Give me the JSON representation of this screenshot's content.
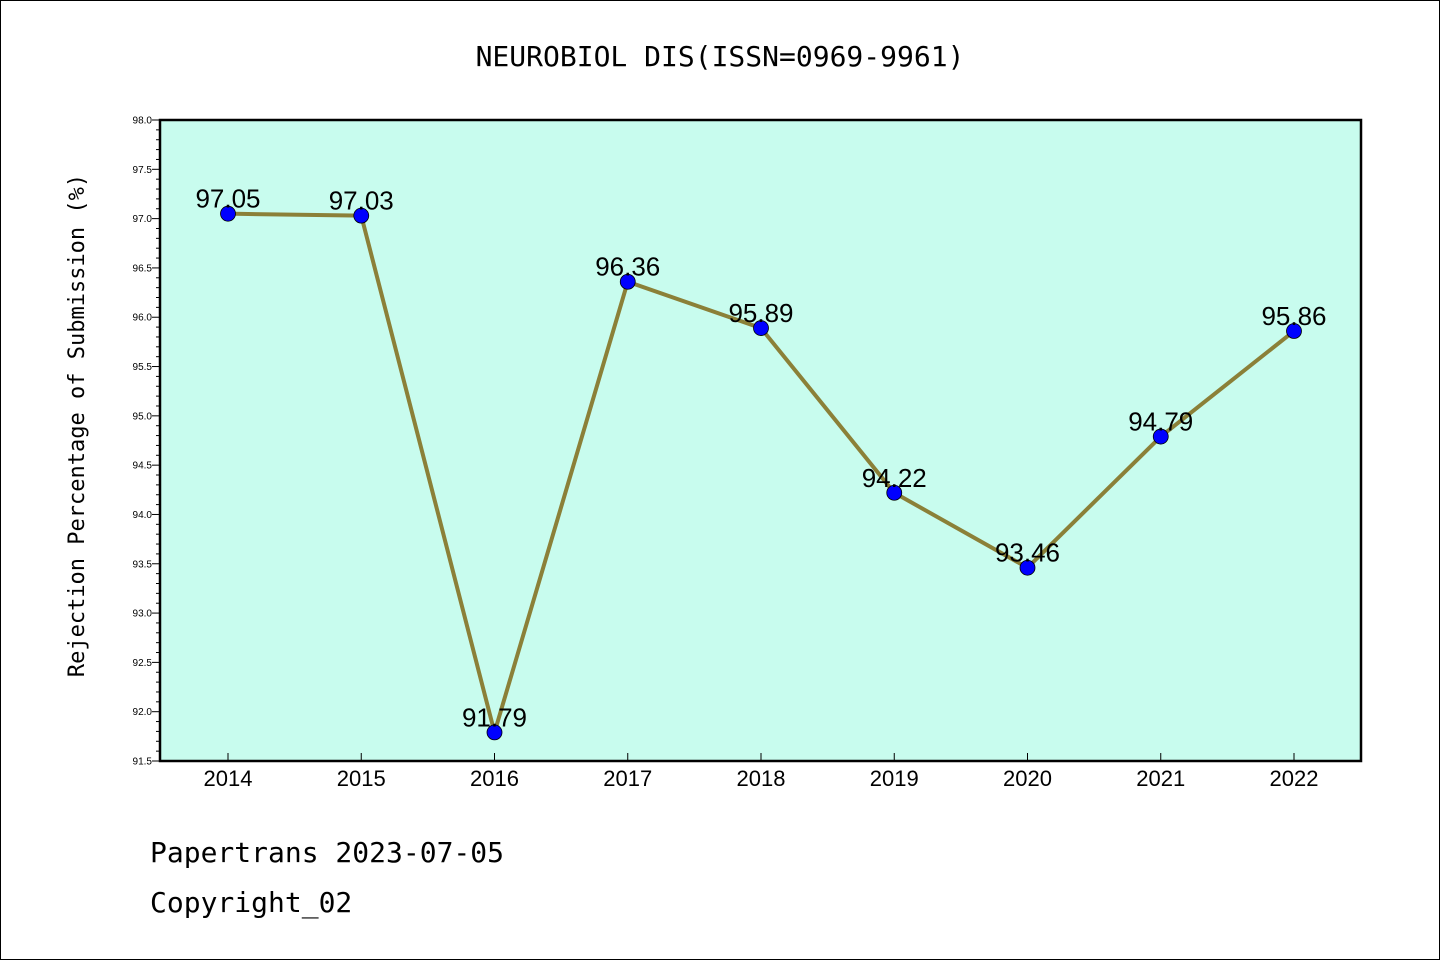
{
  "chart_data": {
    "type": "line",
    "title": "NEUROBIOL DIS(ISSN=0969-9961)",
    "xlabel": "",
    "ylabel": "Rejection Percentage of Submission (%)",
    "categories": [
      "2014",
      "2015",
      "2016",
      "2017",
      "2018",
      "2019",
      "2020",
      "2021",
      "2022"
    ],
    "values": [
      97.05,
      97.03,
      91.79,
      96.36,
      95.89,
      94.22,
      93.46,
      94.79,
      95.86
    ],
    "data_labels": [
      "97.05",
      "97.03",
      "91.79",
      "96.36",
      "95.89",
      "94.22",
      "93.46",
      "94.79",
      "95.86"
    ],
    "ylim": [
      91.5,
      98.0
    ],
    "yticks": [
      "91.5",
      "92.0",
      "92.5",
      "93.0",
      "93.5",
      "94.0",
      "94.5",
      "95.0",
      "95.5",
      "96.0",
      "96.5",
      "97.0",
      "97.5",
      "98.0"
    ],
    "grid": false,
    "colors": {
      "background": "#c8fcee",
      "line": "#8b8038",
      "marker": "#0000ff"
    }
  },
  "footer": {
    "line1": "Papertrans 2023-07-05",
    "line2": "Copyright_02"
  }
}
